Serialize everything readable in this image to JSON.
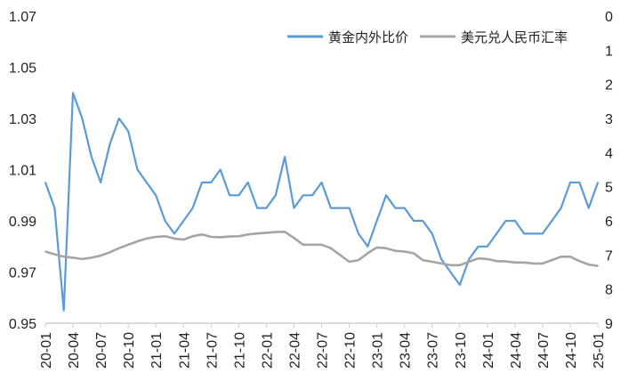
{
  "chart_data": {
    "type": "line",
    "title": "",
    "xlabel": "",
    "ylabel_left": "",
    "ylabel_right": "",
    "x_ticks": [
      "20-01",
      "20-04",
      "20-07",
      "20-10",
      "21-01",
      "21-04",
      "21-07",
      "21-10",
      "22-01",
      "22-04",
      "22-07",
      "22-10",
      "23-01",
      "23-04",
      "23-07",
      "23-10",
      "24-01",
      "24-04",
      "24-07",
      "24-10",
      "25-01"
    ],
    "y_left": {
      "min": 0.95,
      "max": 1.07,
      "ticks": [
        "0.95",
        "0.97",
        "0.99",
        "1.01",
        "1.03",
        "1.05",
        "1.07"
      ]
    },
    "y_right": {
      "min": 0,
      "max": 9,
      "inverted": true,
      "ticks": [
        "0",
        "1",
        "2",
        "3",
        "4",
        "5",
        "6",
        "7",
        "8",
        "9"
      ]
    },
    "legend": {
      "position": "top-right"
    },
    "grid": false,
    "series": [
      {
        "name": "黄金内外比价",
        "axis": "left",
        "color": "#5B9BD5",
        "x": [
          "20-01",
          "20-02",
          "20-03",
          "20-04",
          "20-05",
          "20-06",
          "20-07",
          "20-08",
          "20-09",
          "20-10",
          "20-11",
          "20-12",
          "21-01",
          "21-02",
          "21-03",
          "21-04",
          "21-05",
          "21-06",
          "21-07",
          "21-08",
          "21-09",
          "21-10",
          "21-11",
          "21-12",
          "22-01",
          "22-02",
          "22-03",
          "22-04",
          "22-05",
          "22-06",
          "22-07",
          "22-08",
          "22-09",
          "22-10",
          "22-11",
          "22-12",
          "23-01",
          "23-02",
          "23-03",
          "23-04",
          "23-05",
          "23-06",
          "23-07",
          "23-08",
          "23-09",
          "23-10",
          "23-11",
          "23-12",
          "24-01",
          "24-02",
          "24-03",
          "24-04",
          "24-05",
          "24-06",
          "24-07",
          "24-08",
          "24-09",
          "24-10",
          "24-11",
          "24-12",
          "25-01"
        ],
        "values": [
          1.005,
          0.995,
          0.955,
          1.04,
          1.03,
          1.015,
          1.005,
          1.02,
          1.03,
          1.025,
          1.01,
          1.005,
          1.0,
          0.99,
          0.985,
          0.99,
          0.995,
          1.005,
          1.005,
          1.01,
          1.0,
          1.0,
          1.005,
          0.995,
          0.995,
          1.0,
          1.015,
          0.995,
          1.0,
          1.0,
          1.005,
          0.995,
          0.995,
          0.995,
          0.985,
          0.98,
          0.99,
          1.0,
          0.995,
          0.995,
          0.99,
          0.99,
          0.985,
          0.975,
          0.97,
          0.965,
          0.975,
          0.98,
          0.98,
          0.985,
          0.99,
          0.99,
          0.985,
          0.985,
          0.985,
          0.99,
          0.995,
          1.005,
          1.005,
          0.995,
          1.005
        ]
      },
      {
        "name": "美元兑人民币汇率",
        "axis": "right",
        "color": "#A5A5A5",
        "x": [
          "20-01",
          "20-02",
          "20-03",
          "20-04",
          "20-05",
          "20-06",
          "20-07",
          "20-08",
          "20-09",
          "20-10",
          "20-11",
          "20-12",
          "21-01",
          "21-02",
          "21-03",
          "21-04",
          "21-05",
          "21-06",
          "21-07",
          "21-08",
          "21-09",
          "21-10",
          "21-11",
          "21-12",
          "22-01",
          "22-02",
          "22-03",
          "22-04",
          "22-05",
          "22-06",
          "22-07",
          "22-08",
          "22-09",
          "22-10",
          "22-11",
          "22-12",
          "23-01",
          "23-02",
          "23-03",
          "23-04",
          "23-05",
          "23-06",
          "23-07",
          "23-08",
          "23-09",
          "23-10",
          "23-11",
          "23-12",
          "24-01",
          "24-02",
          "24-03",
          "24-04",
          "24-05",
          "24-06",
          "24-07",
          "24-08",
          "24-09",
          "24-10",
          "24-11",
          "24-12",
          "25-01"
        ],
        "values": [
          6.9,
          6.98,
          7.05,
          7.08,
          7.12,
          7.08,
          7.02,
          6.92,
          6.8,
          6.7,
          6.6,
          6.52,
          6.47,
          6.45,
          6.52,
          6.55,
          6.45,
          6.4,
          6.47,
          6.48,
          6.46,
          6.45,
          6.4,
          6.37,
          6.35,
          6.33,
          6.32,
          6.5,
          6.7,
          6.7,
          6.7,
          6.8,
          7.0,
          7.2,
          7.15,
          6.95,
          6.78,
          6.8,
          6.88,
          6.9,
          6.95,
          7.15,
          7.2,
          7.25,
          7.3,
          7.3,
          7.2,
          7.1,
          7.12,
          7.18,
          7.19,
          7.22,
          7.22,
          7.25,
          7.25,
          7.15,
          7.05,
          7.05,
          7.18,
          7.28,
          7.32
        ]
      }
    ]
  }
}
